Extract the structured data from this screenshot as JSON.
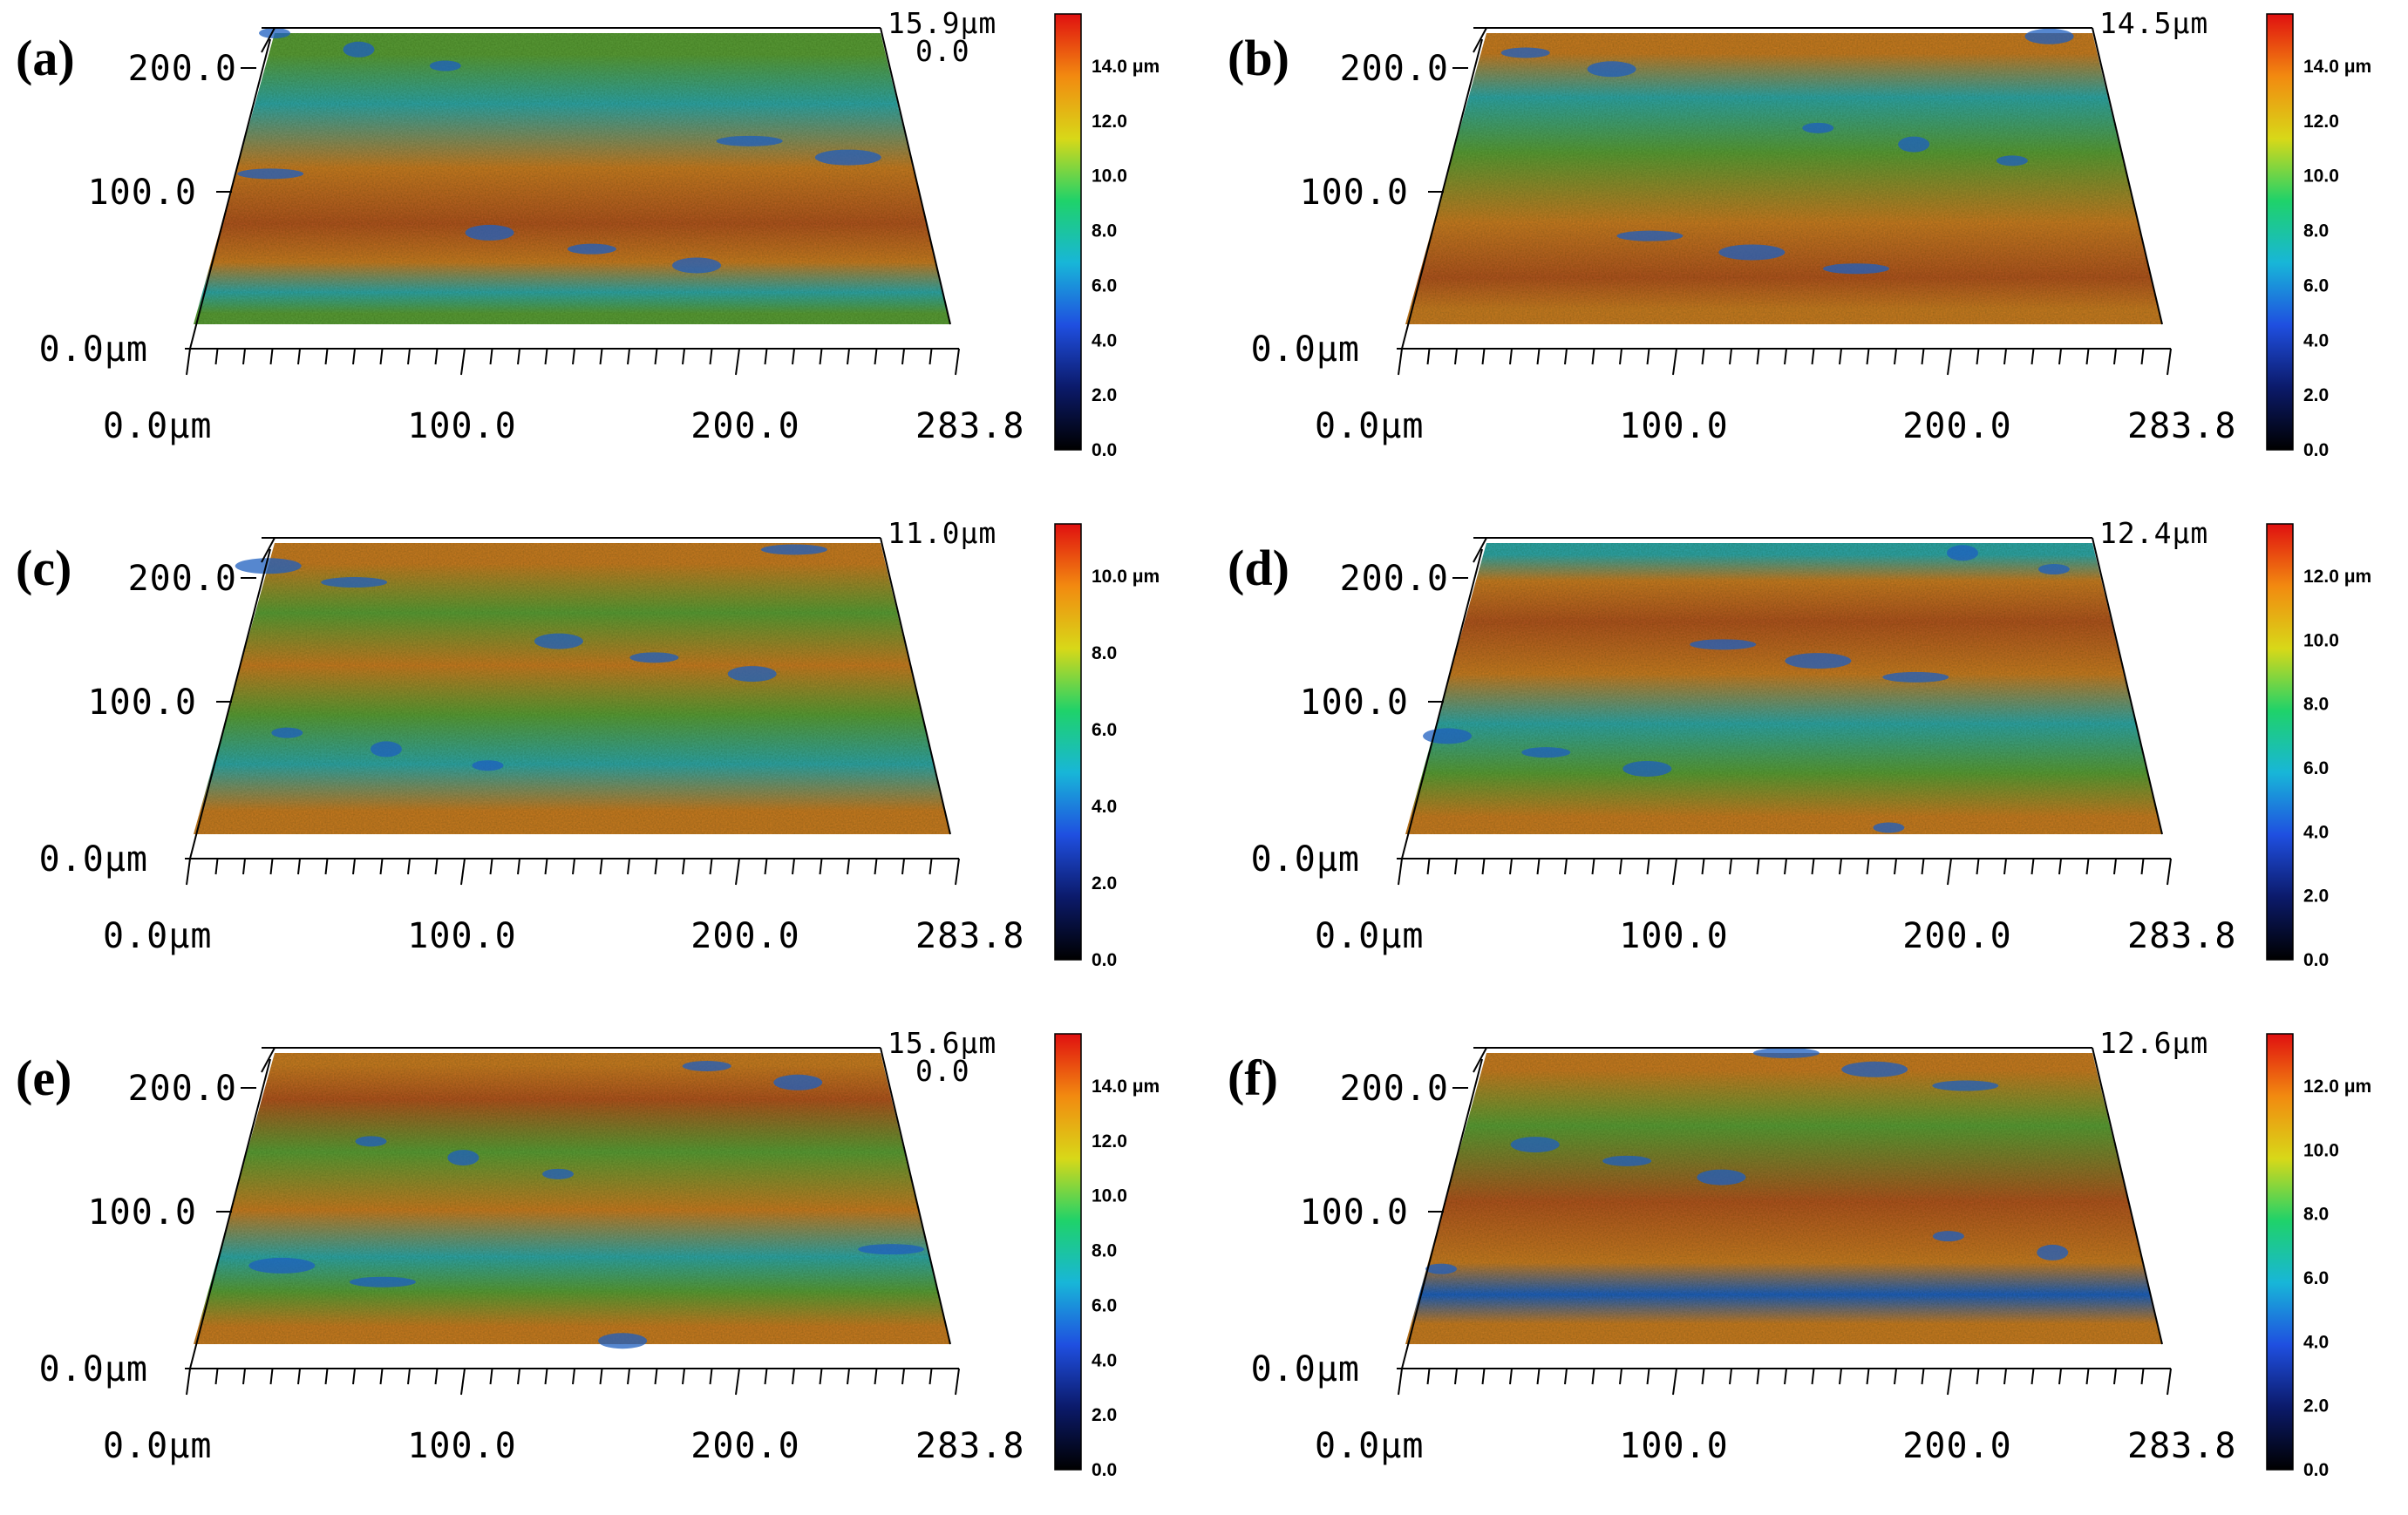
{
  "colors": {
    "surface_red": "#b0531e",
    "surface_orange": "#c87a22",
    "surface_green": "#5a9a36",
    "surface_teal": "#2fa3a8",
    "surface_blue": "#1e5fc0",
    "colorbar": [
      "#000000",
      "#0b1a6a",
      "#1f4fe0",
      "#18b6d8",
      "#1fd26a",
      "#d8d818",
      "#f28a10",
      "#e01010"
    ]
  },
  "panels": [
    {
      "label": "(a)",
      "z_max": "15.9μm",
      "z_min": "0.0",
      "y_ticks": [
        "200.0",
        "100.0",
        "0.0μm"
      ],
      "x_ticks": [
        "0.0μm",
        "100.0",
        "200.0",
        "283.8"
      ],
      "colorbar": {
        "top_label": "14.0 μm",
        "ticks": [
          "12.0",
          "10.0",
          "8.0",
          "6.0",
          "4.0",
          "2.0",
          "0.0"
        ]
      }
    },
    {
      "label": "(b)",
      "z_max": "14.5μm",
      "y_ticks": [
        "200.0",
        "100.0",
        "0.0μm"
      ],
      "x_ticks": [
        "0.0μm",
        "100.0",
        "200.0",
        "283.8"
      ],
      "colorbar": {
        "top_label": "14.0 μm",
        "ticks": [
          "12.0",
          "10.0",
          "8.0",
          "6.0",
          "4.0",
          "2.0",
          "0.0"
        ]
      }
    },
    {
      "label": "(c)",
      "z_max": "11.0μm",
      "y_ticks": [
        "200.0",
        "100.0",
        "0.0μm"
      ],
      "x_ticks": [
        "0.0μm",
        "100.0",
        "200.0",
        "283.8"
      ],
      "colorbar": {
        "top_label": "10.0 μm",
        "ticks": [
          "8.0",
          "6.0",
          "4.0",
          "2.0",
          "0.0"
        ]
      }
    },
    {
      "label": "(d)",
      "z_max": "12.4μm",
      "y_ticks": [
        "200.0",
        "100.0",
        "0.0μm"
      ],
      "x_ticks": [
        "0.0μm",
        "100.0",
        "200.0",
        "283.8"
      ],
      "colorbar": {
        "top_label": "12.0 μm",
        "ticks": [
          "10.0",
          "8.0",
          "6.0",
          "4.0",
          "2.0",
          "0.0"
        ]
      }
    },
    {
      "label": "(e)",
      "z_max": "15.6μm",
      "z_min": "0.0",
      "y_ticks": [
        "200.0",
        "100.0",
        "0.0μm"
      ],
      "x_ticks": [
        "0.0μm",
        "100.0",
        "200.0",
        "283.8"
      ],
      "colorbar": {
        "top_label": "14.0 μm",
        "ticks": [
          "12.0",
          "10.0",
          "8.0",
          "6.0",
          "4.0",
          "2.0",
          "0.0"
        ]
      }
    },
    {
      "label": "(f)",
      "z_max": "12.6μm",
      "y_ticks": [
        "200.0",
        "100.0",
        "0.0μm"
      ],
      "x_ticks": [
        "0.0μm",
        "100.0",
        "200.0",
        "283.8"
      ],
      "colorbar": {
        "top_label": "12.0 μm",
        "ticks": [
          "10.0",
          "8.0",
          "6.0",
          "4.0",
          "2.0",
          "0.0"
        ]
      }
    }
  ]
}
